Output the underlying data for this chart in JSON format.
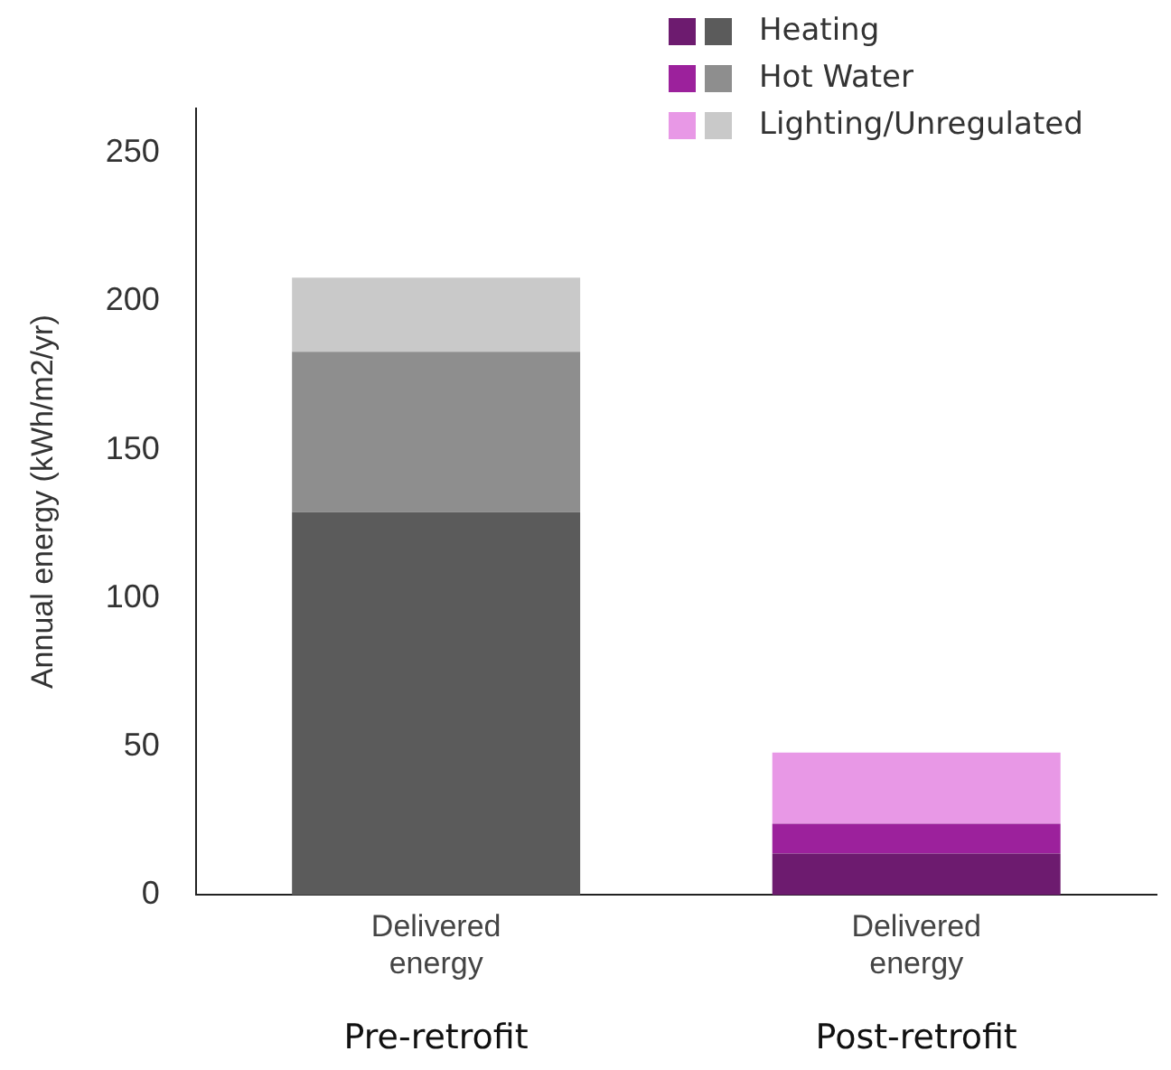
{
  "chart_data": {
    "type": "bar",
    "stacked": true,
    "ylabel": "Annual energy (kWh/m2/yr)",
    "categories": [
      "Delivered energy",
      "Delivered energy"
    ],
    "series": [
      {
        "name": "Heating",
        "colors": [
          "#5b5b5b",
          "#6d1b6f"
        ],
        "values": [
          129,
          14
        ]
      },
      {
        "name": "Hot Water",
        "colors": [
          "#8e8e8e",
          "#9c219c"
        ],
        "values": [
          54,
          10
        ]
      },
      {
        "name": "Lighting/Unregulated",
        "colors": [
          "#c9c9c9",
          "#e898e6"
        ],
        "values": [
          25,
          24
        ]
      }
    ],
    "ylim": [
      0,
      265
    ],
    "yticks": [
      0,
      50,
      100,
      150,
      200,
      250
    ],
    "grid": false,
    "legend": "top right",
    "annotations": [
      "Pre-retrofit",
      "Post-retrofit"
    ]
  }
}
